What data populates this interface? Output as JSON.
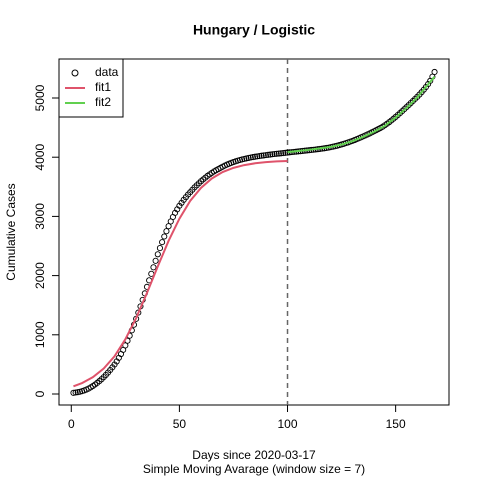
{
  "chart_data": {
    "type": "scatter",
    "title": "Hungary / Logistic",
    "xlabel": "Days since 2020-03-17",
    "subtitle": "Simple Moving Avarage (window size = 7)",
    "ylabel": "Cumulative Cases",
    "xlim": [
      -5.68,
      174.68
    ],
    "ylim": [
      -186,
      5659
    ],
    "xticks": [
      0,
      50,
      100,
      150
    ],
    "yticks": [
      0,
      1000,
      2000,
      3000,
      4000,
      5000
    ],
    "vline": 100,
    "legend": "top-left",
    "series": [
      {
        "name": "data",
        "style": "points",
        "color": "#000000",
        "x": [
          1,
          2,
          3,
          4,
          5,
          6,
          7,
          8,
          9,
          10,
          11,
          12,
          13,
          14,
          15,
          16,
          17,
          18,
          19,
          20,
          21,
          22,
          23,
          24,
          25,
          26,
          27,
          28,
          29,
          30,
          31,
          32,
          33,
          34,
          35,
          36,
          37,
          38,
          39,
          40,
          41,
          42,
          43,
          44,
          45,
          46,
          47,
          48,
          49,
          50,
          51,
          52,
          53,
          54,
          55,
          56,
          57,
          58,
          59,
          60,
          61,
          62,
          63,
          64,
          65,
          66,
          67,
          68,
          69,
          70,
          71,
          72,
          73,
          74,
          75,
          76,
          77,
          78,
          79,
          80,
          81,
          82,
          83,
          84,
          85,
          86,
          87,
          88,
          89,
          90,
          91,
          92,
          93,
          94,
          95,
          96,
          97,
          98,
          99,
          100,
          101,
          102,
          103,
          104,
          105,
          106,
          107,
          108,
          109,
          110,
          111,
          112,
          113,
          114,
          115,
          116,
          117,
          118,
          119,
          120,
          121,
          122,
          123,
          124,
          125,
          126,
          127,
          128,
          129,
          130,
          131,
          132,
          133,
          134,
          135,
          136,
          137,
          138,
          139,
          140,
          141,
          142,
          143,
          144,
          145,
          146,
          147,
          148,
          149,
          150,
          151,
          152,
          153,
          154,
          155,
          156,
          157,
          158,
          159,
          160,
          161,
          162,
          163,
          164,
          165,
          166,
          167,
          168
        ],
        "values": [
          20,
          25,
          30,
          38,
          48,
          60,
          75,
          92,
          112,
          135,
          160,
          188,
          218,
          250,
          285,
          322,
          362,
          405,
          450,
          498,
          550,
          610,
          675,
          745,
          820,
          900,
          985,
          1075,
          1170,
          1270,
          1375,
          1480,
          1590,
          1700,
          1810,
          1920,
          2030,
          2140,
          2250,
          2360,
          2465,
          2565,
          2660,
          2750,
          2835,
          2915,
          2990,
          3060,
          3120,
          3180,
          3230,
          3280,
          3325,
          3370,
          3410,
          3450,
          3490,
          3525,
          3560,
          3595,
          3625,
          3655,
          3685,
          3710,
          3735,
          3760,
          3780,
          3800,
          3820,
          3840,
          3858,
          3875,
          3890,
          3905,
          3918,
          3930,
          3942,
          3953,
          3963,
          3972,
          3980,
          3988,
          3995,
          4002,
          4008,
          4014,
          4020,
          4025,
          4030,
          4035,
          4040,
          4045,
          4050,
          4054,
          4058,
          4062,
          4066,
          4070,
          4074,
          4078,
          4082,
          4086,
          4090,
          4094,
          4098,
          4102,
          4106,
          4110,
          4114,
          4118,
          4122,
          4126,
          4130,
          4135,
          4140,
          4145,
          4150,
          4156,
          4162,
          4170,
          4178,
          4186,
          4195,
          4205,
          4215,
          4226,
          4238,
          4250,
          4263,
          4276,
          4290,
          4305,
          4320,
          4336,
          4352,
          4368,
          4385,
          4402,
          4420,
          4438,
          4456,
          4475,
          4495,
          4515,
          4540,
          4565,
          4592,
          4620,
          4650,
          4680,
          4712,
          4745,
          4778,
          4812,
          4846,
          4880,
          4915,
          4950,
          4985,
          5020,
          5058,
          5098,
          5140,
          5185,
          5235,
          5290,
          5360,
          5440
        ]
      },
      {
        "name": "fit1",
        "style": "line",
        "color": "#DF536B",
        "x": [
          1,
          5,
          10,
          15,
          20,
          25,
          30,
          35,
          40,
          45,
          50,
          55,
          60,
          65,
          70,
          75,
          80,
          85,
          90,
          95,
          100
        ],
        "values": [
          130,
          185,
          284,
          430,
          637,
          923,
          1283,
          1706,
          2155,
          2587,
          2961,
          3262,
          3483,
          3641,
          3749,
          3820,
          3867,
          3897,
          3916,
          3929,
          3936
        ]
      },
      {
        "name": "fit2",
        "style": "line",
        "color": "#61D04F",
        "x": [
          100,
          105,
          110,
          115,
          120,
          125,
          130,
          135,
          140,
          145,
          150,
          155,
          160,
          165,
          168
        ],
        "values": [
          4085,
          4105,
          4125,
          4150,
          4175,
          4215,
          4270,
          4345,
          4430,
          4530,
          4670,
          4830,
          5010,
          5230,
          5360
        ]
      }
    ]
  }
}
